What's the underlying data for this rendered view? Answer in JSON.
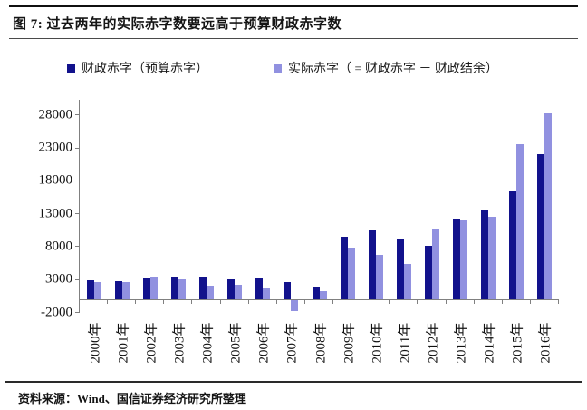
{
  "header": {
    "title": "图 7: 过去两年的实际赤字数要远高于预算财政赤字数"
  },
  "legend": [
    {
      "label": "财政赤字（预算赤字）",
      "color": "#12128c"
    },
    {
      "label": "实际赤字（ = 财政赤字 － 财政结余）",
      "color": "#9191e0"
    }
  ],
  "footer": {
    "source": "资料来源：Wind、国信证券经济研究所整理"
  },
  "chart_data": {
    "type": "bar",
    "title": "过去两年的实际赤字数要远高于预算财政赤字数",
    "categories": [
      "2000年",
      "2001年",
      "2002年",
      "2003年",
      "2004年",
      "2005年",
      "2006年",
      "2007年",
      "2008年",
      "2009年",
      "2010年",
      "2011年",
      "2012年",
      "2013年",
      "2014年",
      "2015年",
      "2016年"
    ],
    "series": [
      {
        "name": "财政赤字（预算赤字）",
        "color": "#12128c",
        "values": [
          2900,
          2800,
          3300,
          3450,
          3400,
          3000,
          3100,
          2600,
          1950,
          9500,
          10500,
          9100,
          8100,
          12250,
          13500,
          16400,
          22000
        ]
      },
      {
        "name": "实际赤字（ = 财政赤字 － 财政结余）",
        "color": "#9191e0",
        "values": [
          2600,
          2550,
          3400,
          3050,
          2000,
          2200,
          1650,
          -1700,
          1250,
          7800,
          6800,
          5400,
          10800,
          12150,
          12600,
          23600,
          28250
        ]
      }
    ],
    "yticks": [
      -2000,
      3000,
      8000,
      13000,
      18000,
      23000,
      28000
    ],
    "ytick_labels": [
      "-2000",
      "3000",
      "8000",
      "13000",
      "18000",
      "23000",
      "28000"
    ],
    "ylim": [
      -2000,
      30300
    ],
    "grid": false,
    "legend_position": "top",
    "x_labels_rotated": true
  }
}
